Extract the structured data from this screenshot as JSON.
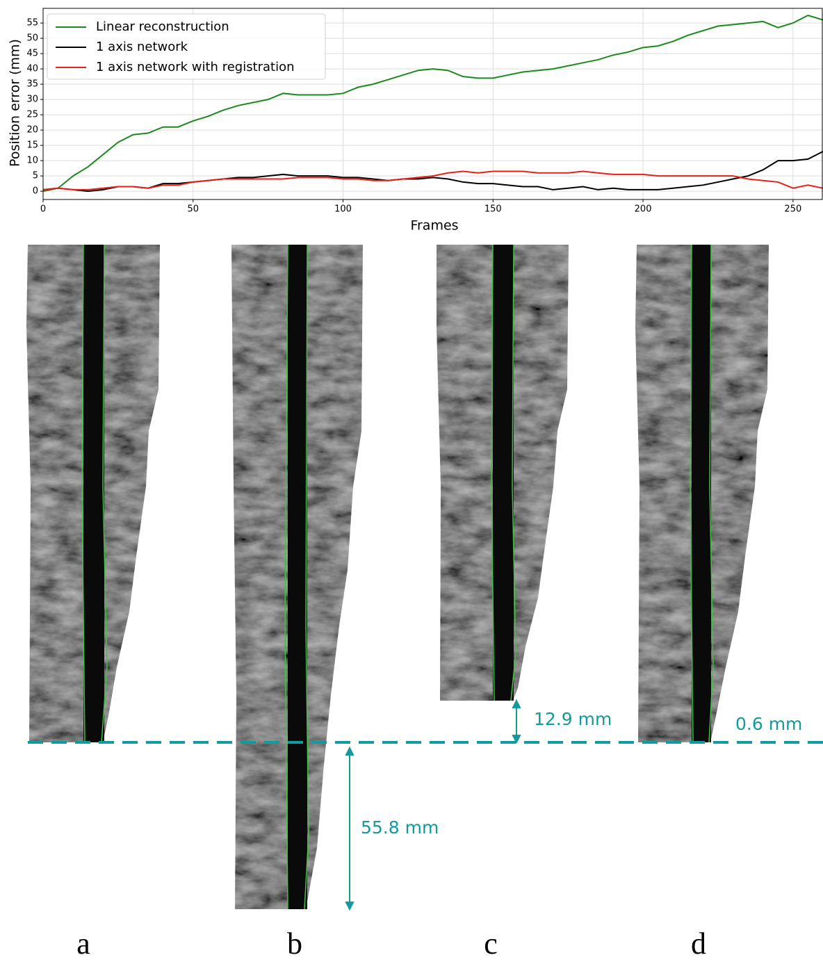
{
  "chart_data": {
    "type": "line",
    "ylabel": "Position error (mm)",
    "xlabel": "Frames",
    "x": [
      0,
      5,
      10,
      15,
      20,
      25,
      30,
      35,
      40,
      45,
      50,
      55,
      60,
      65,
      70,
      75,
      80,
      85,
      90,
      95,
      100,
      105,
      110,
      115,
      120,
      125,
      130,
      135,
      140,
      145,
      150,
      155,
      160,
      165,
      170,
      175,
      180,
      185,
      190,
      195,
      200,
      205,
      210,
      215,
      220,
      225,
      230,
      235,
      240,
      245,
      250,
      255,
      260
    ],
    "series": [
      {
        "name": "Linear reconstruction",
        "color": "#1a8a1a",
        "values": [
          0,
          1,
          5,
          8,
          12,
          16,
          18.5,
          19,
          21,
          21,
          23,
          24.5,
          26.5,
          28,
          29,
          30,
          32,
          31.5,
          31.5,
          31.5,
          32,
          34,
          35,
          36.5,
          38,
          39.5,
          40,
          39.5,
          37.5,
          37,
          37,
          38,
          39,
          39.5,
          40,
          41,
          42,
          43,
          44.5,
          45.5,
          47,
          47.5,
          49,
          51,
          52.5,
          54,
          54.5,
          55,
          55.5,
          53.5,
          55,
          57.5,
          56
        ]
      },
      {
        "name": "1 axis network",
        "color": "#000000",
        "values": [
          0.5,
          1,
          0.5,
          0,
          0.5,
          1.5,
          1.5,
          1,
          2.5,
          2.5,
          3,
          3.5,
          4,
          4.5,
          4.5,
          5,
          5.5,
          5,
          5,
          5,
          4.5,
          4.5,
          4,
          3.5,
          4,
          4,
          4.5,
          4,
          3,
          2.5,
          2.5,
          2,
          1.5,
          1.5,
          0.5,
          1,
          1.5,
          0.5,
          1,
          0.5,
          0.5,
          0.5,
          1,
          1.5,
          2,
          3,
          4,
          5,
          7,
          10,
          10,
          10.5,
          13
        ]
      },
      {
        "name": "1 axis network with registration",
        "color": "#e8201a",
        "values": [
          0.5,
          1,
          0.5,
          0.5,
          1,
          1.5,
          1.5,
          1,
          2,
          2,
          3,
          3.5,
          4,
          4,
          4,
          4,
          4,
          4.5,
          4.5,
          4.5,
          4,
          4,
          3.5,
          3.5,
          4,
          4.5,
          5,
          6,
          6.5,
          6,
          6.5,
          6.5,
          6.5,
          6,
          6,
          6,
          6.5,
          6,
          5.5,
          5.5,
          5.5,
          5,
          5,
          5,
          5,
          5,
          5,
          4,
          3.5,
          3,
          1,
          2,
          1
        ]
      }
    ],
    "xlim": [
      0,
      260
    ],
    "ylim": [
      -2.7,
      59.8
    ],
    "xticks": [
      0,
      50,
      100,
      150,
      200,
      250
    ],
    "yticks": [
      0,
      5,
      10,
      15,
      20,
      25,
      30,
      35,
      40,
      45,
      50,
      55
    ],
    "grid": true,
    "legend": "upper-left"
  },
  "figure": {
    "panel_labels": [
      "a",
      "b",
      "c",
      "d"
    ],
    "measurements": [
      "12.9 mm",
      "55.8 mm",
      "0.6 mm"
    ]
  }
}
